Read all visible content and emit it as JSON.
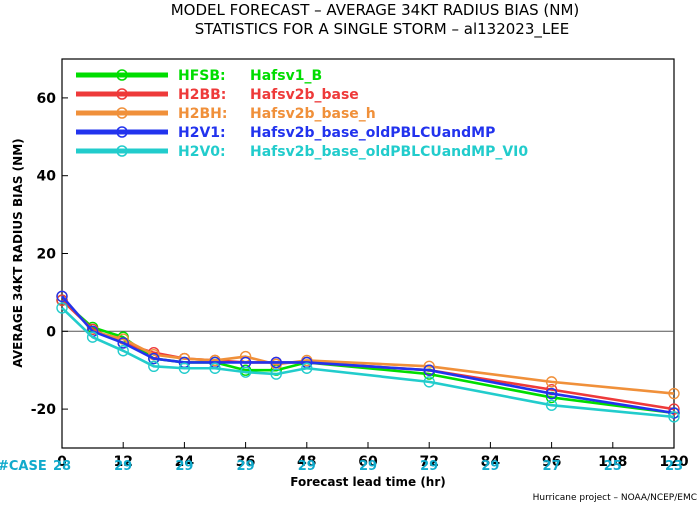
{
  "chart_data": {
    "type": "line",
    "title": "MODEL FORECAST – AVERAGE 34KT RADIUS BIAS (NM)",
    "subtitle": "STATISTICS FOR A SINGLE STORM – al132023_LEE",
    "xlabel": "Forecast lead time (hr)",
    "ylabel": "AVERAGE 34KT RADIUS BIAS (NM)",
    "xlim": [
      0,
      120
    ],
    "ylim": [
      -30,
      70
    ],
    "xticks": [
      0,
      12,
      24,
      36,
      48,
      60,
      72,
      84,
      96,
      108,
      120
    ],
    "yticks": [
      -20,
      0,
      20,
      40,
      60
    ],
    "zero_line": true,
    "legend_position": "top-left",
    "case_label": "#CASE",
    "cases": [
      {
        "x": 0,
        "label": "28"
      },
      {
        "x": 12,
        "label": "29"
      },
      {
        "x": 24,
        "label": "29"
      },
      {
        "x": 36,
        "label": "29"
      },
      {
        "x": 48,
        "label": "29"
      },
      {
        "x": 60,
        "label": "29"
      },
      {
        "x": 72,
        "label": "29"
      },
      {
        "x": 84,
        "label": "29"
      },
      {
        "x": 96,
        "label": "27"
      },
      {
        "x": 108,
        "label": "25"
      },
      {
        "x": 120,
        "label": "23"
      }
    ],
    "credit": "Hurricane project – NOAA/NCEP/EMC",
    "series": [
      {
        "id": "HFSB",
        "name": "Hafsv1_B",
        "color": "#00dd00",
        "x": [
          0,
          6,
          12,
          18,
          24,
          30,
          36,
          42,
          48,
          72,
          96,
          120
        ],
        "y": [
          8,
          1,
          -1.5,
          -7,
          -8,
          -8,
          -10,
          -10,
          -8,
          -11,
          -17,
          -21
        ]
      },
      {
        "id": "H2BB",
        "name": "Hafsv2b_base",
        "color": "#ee3a3a",
        "x": [
          0,
          6,
          12,
          18,
          24,
          30,
          36,
          42,
          48,
          72,
          96,
          120
        ],
        "y": [
          8,
          0.5,
          -3,
          -5.5,
          -7,
          -7.5,
          -8,
          -8,
          -8,
          -10,
          -15,
          -20
        ]
      },
      {
        "id": "H2BH",
        "name": "Hafsv2b_base_h",
        "color": "#f0903a",
        "x": [
          0,
          6,
          12,
          18,
          24,
          30,
          36,
          42,
          48,
          72,
          96,
          120
        ],
        "y": [
          9,
          0,
          -2,
          -6,
          -7,
          -7.5,
          -6.5,
          -8.5,
          -7.5,
          -9,
          -13,
          -16
        ]
      },
      {
        "id": "H2V1",
        "name": "Hafsv2b_base_oldPBLCUandMP",
        "color": "#2233ee",
        "x": [
          0,
          6,
          12,
          18,
          24,
          30,
          36,
          42,
          48,
          72,
          96,
          120
        ],
        "y": [
          9,
          0,
          -3,
          -7,
          -8,
          -8,
          -8,
          -8,
          -8,
          -10,
          -16,
          -21
        ]
      },
      {
        "id": "H2V0",
        "name": "Hafsv2b_base_oldPBLCUandMP_VI0",
        "color": "#22cccc",
        "x": [
          0,
          6,
          12,
          18,
          24,
          30,
          36,
          42,
          48,
          72,
          96,
          120
        ],
        "y": [
          6,
          -1.5,
          -5,
          -9,
          -9.5,
          -9.5,
          -10.5,
          -11,
          -9.5,
          -13,
          -19,
          -22
        ]
      }
    ]
  }
}
